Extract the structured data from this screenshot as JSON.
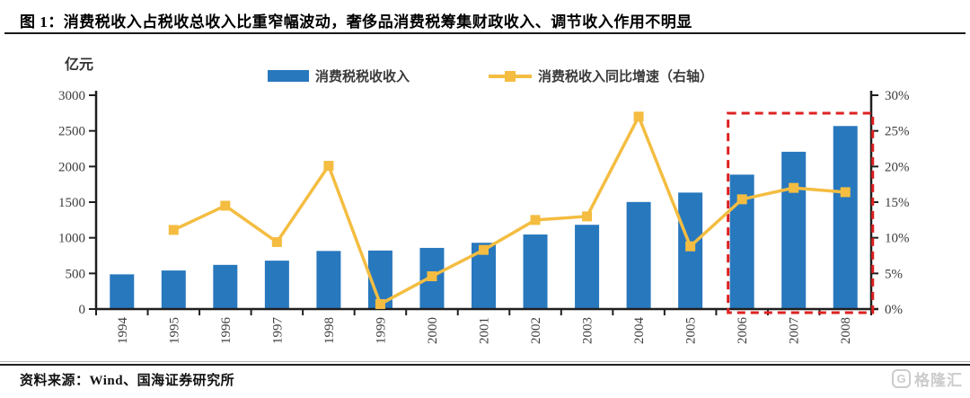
{
  "header": {
    "title": "图 1：消费税收入占税收总收入比重窄幅波动，奢侈品消费税筹集财政收入、调节收入作用不明显"
  },
  "chart_data": {
    "type": "bar",
    "subtype": "bar-plus-line-combo",
    "unit_label": "亿元",
    "categories": [
      "1994",
      "1995",
      "1996",
      "1997",
      "1998",
      "1999",
      "2000",
      "2001",
      "2002",
      "2003",
      "2004",
      "2005",
      "2006",
      "2007",
      "2008"
    ],
    "series": [
      {
        "name": "消费税税收收入",
        "type": "bar",
        "axis": "left",
        "color": "#2878BE",
        "values": [
          487,
          541,
          620,
          679,
          815,
          821,
          858,
          930,
          1046,
          1182,
          1502,
          1634,
          1886,
          2207,
          2568
        ]
      },
      {
        "name": "消费税收入同比增速（右轴）",
        "type": "line",
        "axis": "right",
        "color": "#F4BD41",
        "marker": "square",
        "values": [
          null,
          11.1,
          14.5,
          9.4,
          20.1,
          0.7,
          4.6,
          8.3,
          12.5,
          13.0,
          27.0,
          8.8,
          15.4,
          17.0,
          16.4
        ]
      }
    ],
    "left_axis": {
      "min": 0,
      "max": 3000,
      "tick_step": 500,
      "tick_labels": [
        "0",
        "500",
        "1000",
        "1500",
        "2000",
        "2500",
        "3000"
      ]
    },
    "right_axis": {
      "min": 0,
      "max": 30,
      "tick_step": 5,
      "tick_labels": [
        "0%",
        "5%",
        "10%",
        "15%",
        "20%",
        "25%",
        "30%"
      ]
    },
    "x_tick_rotation": -90,
    "grid": false,
    "legend_position": "top-center",
    "highlight_box": {
      "from": "2006",
      "to": "2008",
      "color": "#DE2121",
      "style": "dashed"
    },
    "axis_color": "#1f1f1f",
    "tick_label_color": "#3d3d3d"
  },
  "footer": {
    "source": "资料来源：Wind、国海证券研究所",
    "logo_icon": "G",
    "logo_text": "格隆汇"
  }
}
